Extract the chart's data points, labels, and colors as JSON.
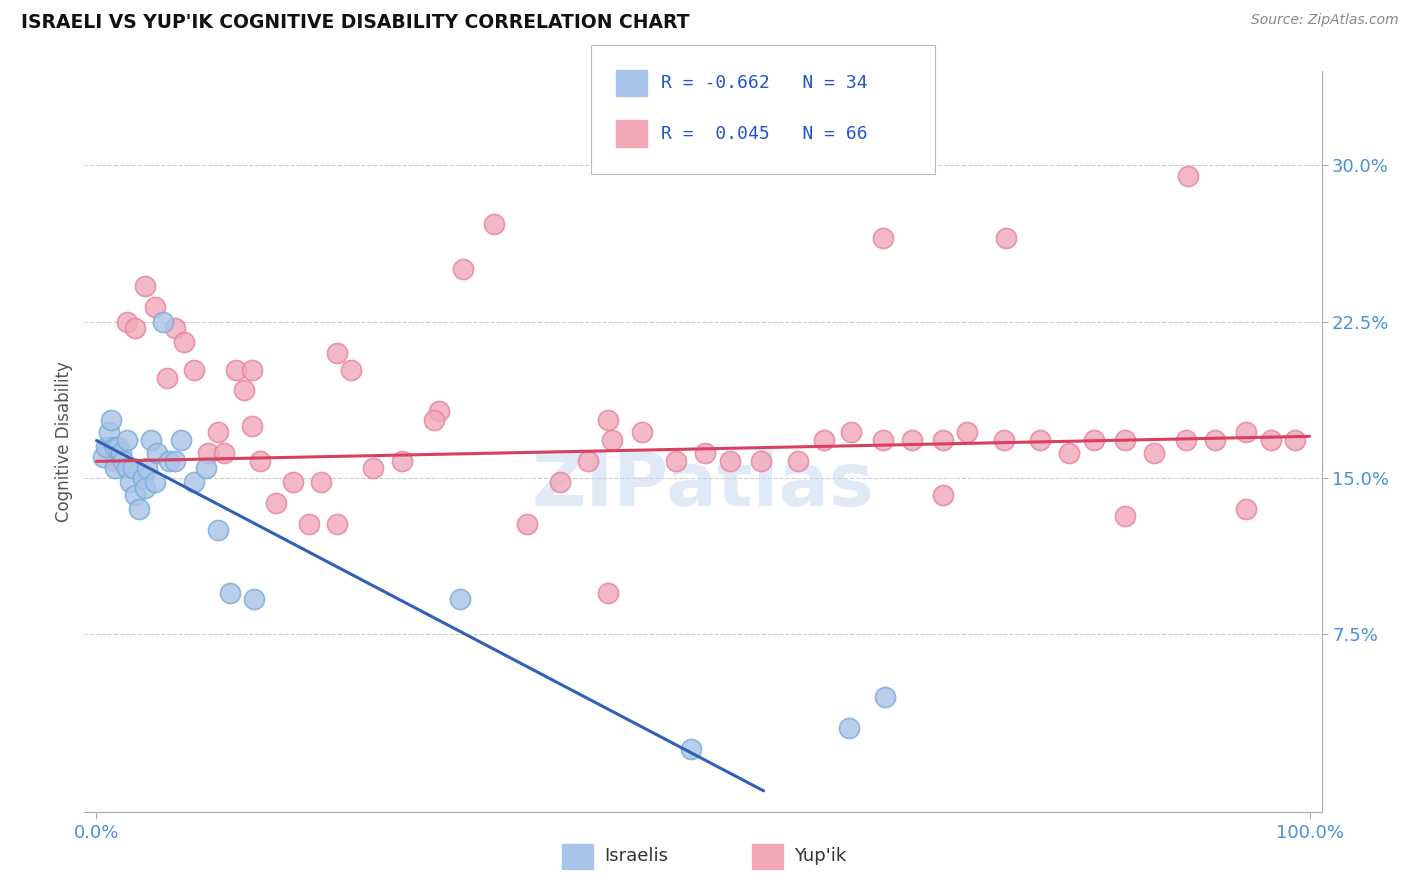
{
  "title": "ISRAELI VS YUP'IK COGNITIVE DISABILITY CORRELATION CHART",
  "source": "Source: ZipAtlas.com",
  "ylabel": "Cognitive Disability",
  "ytick_labels": [
    "7.5%",
    "15.0%",
    "22.5%",
    "30.0%"
  ],
  "ytick_values": [
    0.075,
    0.15,
    0.225,
    0.3
  ],
  "xlim": [
    -0.01,
    1.01
  ],
  "ylim": [
    -0.01,
    0.345
  ],
  "legend_r_israeli": "-0.662",
  "legend_n_israeli": "34",
  "legend_r_yupik": "0.045",
  "legend_n_yupik": "66",
  "israeli_color": "#a8c4e8",
  "yupik_color": "#f2a8b8",
  "israeli_edge": "#7aaad8",
  "yupik_edge": "#e880a0",
  "trend_israeli_color": "#3060b8",
  "trend_yupik_color": "#d84060",
  "watermark": "ZIPatlas",
  "label_color": "#4a90d9",
  "israeli_x": [
    0.005,
    0.008,
    0.01,
    0.012,
    0.015,
    0.015,
    0.018,
    0.02,
    0.022,
    0.025,
    0.025,
    0.028,
    0.03,
    0.032,
    0.035,
    0.038,
    0.04,
    0.042,
    0.045,
    0.048,
    0.05,
    0.055,
    0.06,
    0.065,
    0.07,
    0.08,
    0.09,
    0.1,
    0.11,
    0.13,
    0.3,
    0.62,
    0.65,
    0.49
  ],
  "israeli_y": [
    0.16,
    0.165,
    0.172,
    0.178,
    0.165,
    0.155,
    0.165,
    0.162,
    0.158,
    0.168,
    0.155,
    0.148,
    0.155,
    0.142,
    0.135,
    0.15,
    0.145,
    0.155,
    0.168,
    0.148,
    0.162,
    0.225,
    0.158,
    0.158,
    0.168,
    0.148,
    0.155,
    0.125,
    0.095,
    0.092,
    0.092,
    0.03,
    0.045,
    0.02
  ],
  "yupik_x": [
    0.01,
    0.015,
    0.025,
    0.032,
    0.04,
    0.048,
    0.058,
    0.065,
    0.072,
    0.08,
    0.092,
    0.1,
    0.105,
    0.115,
    0.122,
    0.128,
    0.135,
    0.148,
    0.162,
    0.175,
    0.185,
    0.198,
    0.21,
    0.228,
    0.252,
    0.282,
    0.302,
    0.328,
    0.355,
    0.382,
    0.405,
    0.425,
    0.45,
    0.478,
    0.502,
    0.522,
    0.548,
    0.578,
    0.6,
    0.622,
    0.648,
    0.672,
    0.698,
    0.718,
    0.748,
    0.778,
    0.802,
    0.822,
    0.848,
    0.872,
    0.898,
    0.922,
    0.948,
    0.968,
    0.988,
    0.9,
    0.75,
    0.648,
    0.948,
    0.278,
    0.422,
    0.698,
    0.848,
    0.422,
    0.128,
    0.198
  ],
  "yupik_y": [
    0.165,
    0.158,
    0.225,
    0.222,
    0.242,
    0.232,
    0.198,
    0.222,
    0.215,
    0.202,
    0.162,
    0.172,
    0.162,
    0.202,
    0.192,
    0.175,
    0.158,
    0.138,
    0.148,
    0.128,
    0.148,
    0.128,
    0.202,
    0.155,
    0.158,
    0.182,
    0.25,
    0.272,
    0.128,
    0.148,
    0.158,
    0.168,
    0.172,
    0.158,
    0.162,
    0.158,
    0.158,
    0.158,
    0.168,
    0.172,
    0.168,
    0.168,
    0.168,
    0.172,
    0.168,
    0.168,
    0.162,
    0.168,
    0.168,
    0.162,
    0.168,
    0.168,
    0.172,
    0.168,
    0.168,
    0.295,
    0.265,
    0.265,
    0.135,
    0.178,
    0.095,
    0.142,
    0.132,
    0.178,
    0.202,
    0.21
  ],
  "isr_trend_x0": 0.0,
  "isr_trend_y0": 0.168,
  "isr_trend_x1": 0.55,
  "isr_trend_y1": 0.0,
  "yup_trend_x0": 0.0,
  "yup_trend_y0": 0.158,
  "yup_trend_x1": 1.0,
  "yup_trend_y1": 0.17
}
